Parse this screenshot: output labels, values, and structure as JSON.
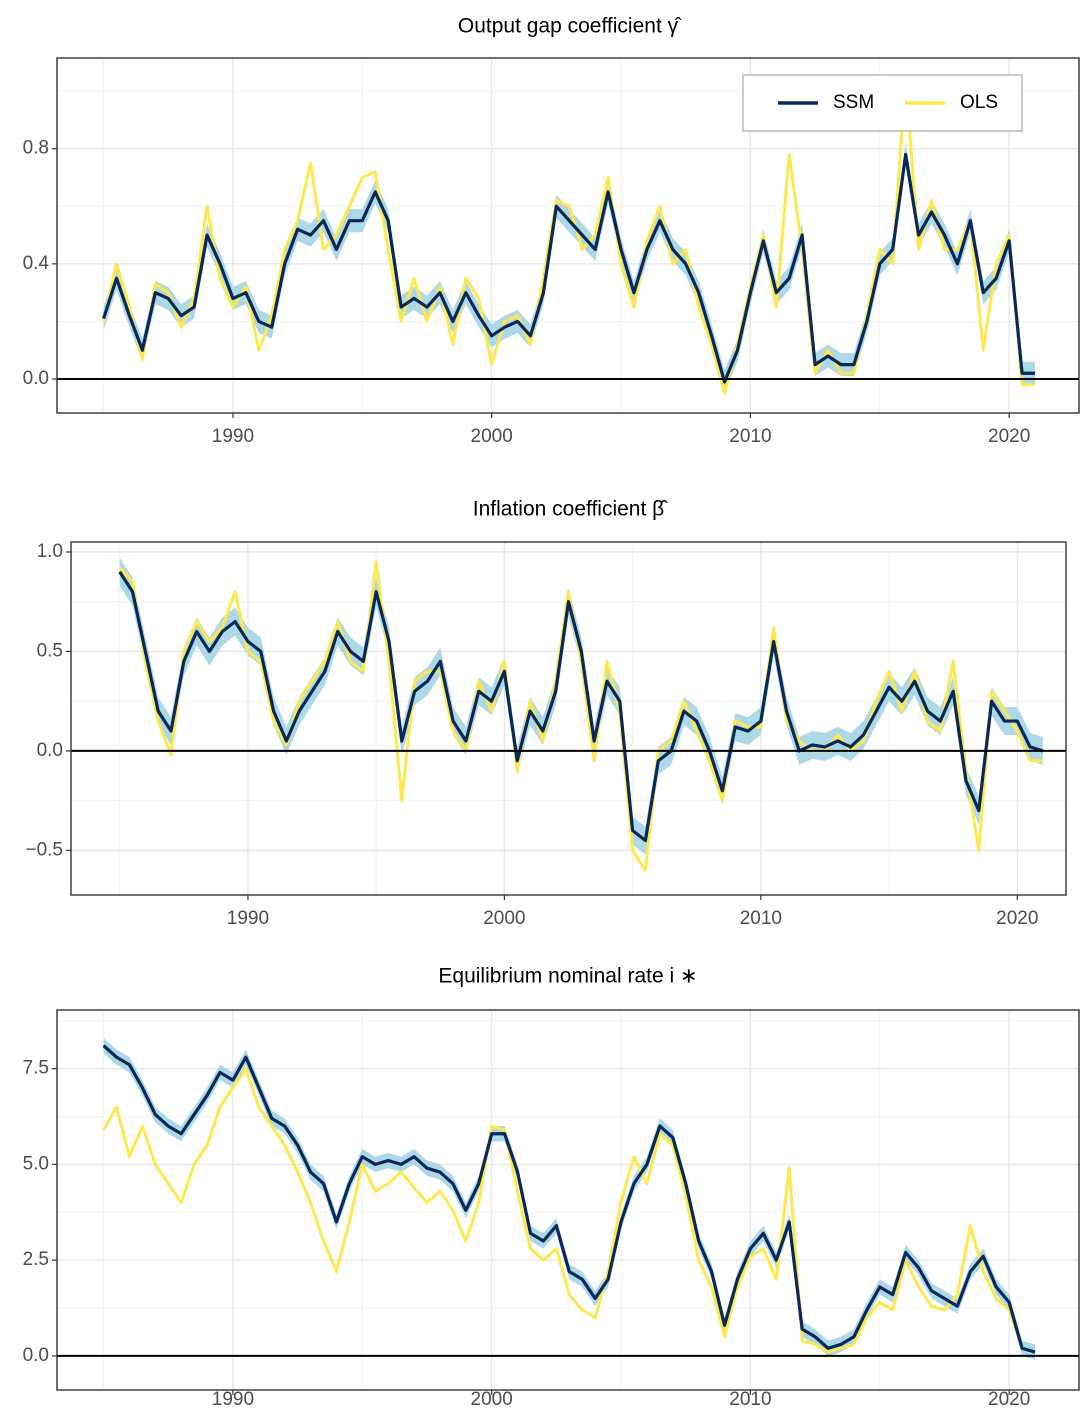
{
  "chart_data": [
    {
      "type": "line",
      "title": "Output gap coefficient γ̂",
      "x": [
        1985,
        1985.5,
        1986,
        1986.5,
        1987,
        1987.5,
        1988,
        1988.5,
        1989,
        1989.5,
        1990,
        1990.5,
        1991,
        1991.5,
        1992,
        1992.5,
        1993,
        1993.5,
        1994,
        1994.5,
        1995,
        1995.5,
        1996,
        1996.5,
        1997,
        1997.5,
        1998,
        1998.5,
        1999,
        1999.5,
        2000,
        2000.5,
        2001,
        2001.5,
        2002,
        2002.5,
        2003,
        2003.5,
        2004,
        2004.5,
        2005,
        2005.5,
        2006,
        2006.5,
        2007,
        2007.5,
        2008,
        2008.5,
        2009,
        2009.5,
        2010,
        2010.5,
        2011,
        2011.5,
        2012,
        2012.5,
        2013,
        2013.5,
        2014,
        2014.5,
        2015,
        2015.5,
        2016,
        2016.5,
        2017,
        2017.5,
        2018,
        2018.5,
        2019,
        2019.5,
        2020,
        2020.5,
        2021
      ],
      "xlim": [
        1983.2,
        2022.7
      ],
      "xticks": [
        1990,
        2000,
        2010,
        2020
      ],
      "ylim": [
        -0.118,
        1.115
      ],
      "yticks": [
        {
          "value": 0,
          "label": "0.0"
        },
        {
          "value": 0.4,
          "label": "0.4"
        },
        {
          "value": 0.8,
          "label": "0.8"
        }
      ],
      "hline": 0,
      "grid": true,
      "legend": "top-right",
      "series": [
        {
          "name": "SSM",
          "color": "#08285a",
          "band_color": "#add8e6",
          "error": 0.04,
          "values": [
            0.21,
            0.35,
            0.22,
            0.1,
            0.3,
            0.28,
            0.22,
            0.25,
            0.5,
            0.4,
            0.28,
            0.3,
            0.2,
            0.18,
            0.4,
            0.52,
            0.5,
            0.55,
            0.45,
            0.55,
            0.55,
            0.65,
            0.55,
            0.25,
            0.28,
            0.25,
            0.3,
            0.2,
            0.3,
            0.22,
            0.15,
            0.18,
            0.2,
            0.15,
            0.3,
            0.6,
            0.55,
            0.5,
            0.45,
            0.65,
            0.45,
            0.3,
            0.45,
            0.55,
            0.45,
            0.4,
            0.3,
            0.15,
            -0.01,
            0.1,
            0.3,
            0.48,
            0.3,
            0.35,
            0.5,
            0.05,
            0.08,
            0.05,
            0.05,
            0.2,
            0.4,
            0.45,
            0.78,
            0.5,
            0.58,
            0.5,
            0.4,
            0.55,
            0.3,
            0.35,
            0.48,
            0.02,
            0.02
          ]
        },
        {
          "name": "OLS",
          "color": "#ffe84d",
          "values": [
            0.2,
            0.4,
            0.25,
            0.07,
            0.33,
            0.3,
            0.18,
            0.28,
            0.6,
            0.35,
            0.25,
            0.32,
            0.1,
            0.22,
            0.45,
            0.55,
            0.75,
            0.45,
            0.5,
            0.6,
            0.7,
            0.72,
            0.45,
            0.2,
            0.35,
            0.2,
            0.32,
            0.12,
            0.35,
            0.28,
            0.05,
            0.2,
            0.22,
            0.12,
            0.35,
            0.62,
            0.6,
            0.45,
            0.5,
            0.7,
            0.4,
            0.25,
            0.48,
            0.6,
            0.4,
            0.45,
            0.25,
            0.12,
            -0.05,
            0.12,
            0.32,
            0.5,
            0.25,
            0.78,
            0.45,
            0.02,
            0.1,
            0.02,
            0.02,
            0.22,
            0.45,
            0.4,
            1.05,
            0.45,
            0.62,
            0.45,
            0.45,
            0.55,
            0.1,
            0.4,
            0.5,
            -0.02,
            -0.02
          ]
        }
      ]
    },
    {
      "type": "line",
      "title": "Inflation coefficient β̂",
      "x": [
        1985,
        1985.5,
        1986,
        1986.5,
        1987,
        1987.5,
        1988,
        1988.5,
        1989,
        1989.5,
        1990,
        1990.5,
        1991,
        1991.5,
        1992,
        1992.5,
        1993,
        1993.5,
        1994,
        1994.5,
        1995,
        1995.5,
        1996,
        1996.5,
        1997,
        1997.5,
        1998,
        1998.5,
        1999,
        1999.5,
        2000,
        2000.5,
        2001,
        2001.5,
        2002,
        2002.5,
        2003,
        2003.5,
        2004,
        2004.5,
        2005,
        2005.5,
        2006,
        2006.5,
        2007,
        2007.5,
        2008,
        2008.5,
        2009,
        2009.5,
        2010,
        2010.5,
        2011,
        2011.5,
        2012,
        2012.5,
        2013,
        2013.5,
        2014,
        2014.5,
        2015,
        2015.5,
        2016,
        2016.5,
        2017,
        2017.5,
        2018,
        2018.5,
        2019,
        2019.5,
        2020,
        2020.5,
        2021
      ],
      "xlim": [
        1983.1,
        2021.9
      ],
      "xticks": [
        1990,
        2000,
        2010,
        2020
      ],
      "ylim": [
        -0.724,
        1.05
      ],
      "yticks": [
        {
          "value": -0.5,
          "label": "−0.5"
        },
        {
          "value": 0,
          "label": "0.0"
        },
        {
          "value": 0.5,
          "label": "0.5"
        },
        {
          "value": 1,
          "label": "1.0"
        }
      ],
      "hline": 0,
      "grid": true,
      "series": [
        {
          "color": "#08285a",
          "band_color": "#add8e6",
          "error": 0.07,
          "values": [
            0.9,
            0.8,
            0.5,
            0.2,
            0.1,
            0.45,
            0.6,
            0.5,
            0.6,
            0.65,
            0.55,
            0.5,
            0.2,
            0.05,
            0.2,
            0.3,
            0.4,
            0.6,
            0.5,
            0.45,
            0.8,
            0.55,
            0.05,
            0.3,
            0.35,
            0.45,
            0.15,
            0.05,
            0.3,
            0.25,
            0.4,
            -0.05,
            0.2,
            0.1,
            0.3,
            0.75,
            0.5,
            0.05,
            0.35,
            0.25,
            -0.4,
            -0.45,
            -0.05,
            0.0,
            0.2,
            0.15,
            0.0,
            -0.2,
            0.12,
            0.1,
            0.15,
            0.55,
            0.2,
            0.0,
            0.03,
            0.02,
            0.05,
            0.02,
            0.08,
            0.2,
            0.32,
            0.25,
            0.35,
            0.2,
            0.15,
            0.3,
            -0.15,
            -0.3,
            0.25,
            0.15,
            0.15,
            0.02,
            0.0
          ]
        },
        {
          "color": "#ffe84d",
          "values": [
            0.92,
            0.85,
            0.45,
            0.15,
            -0.02,
            0.5,
            0.65,
            0.55,
            0.62,
            0.8,
            0.5,
            0.45,
            0.15,
            0.03,
            0.25,
            0.35,
            0.45,
            0.65,
            0.45,
            0.4,
            0.95,
            0.45,
            -0.25,
            0.35,
            0.4,
            0.4,
            0.1,
            0.0,
            0.35,
            0.2,
            0.45,
            -0.1,
            0.25,
            0.05,
            0.35,
            0.8,
            0.45,
            -0.05,
            0.45,
            0.2,
            -0.5,
            -0.6,
            0.0,
            0.05,
            0.25,
            0.1,
            -0.05,
            -0.25,
            0.15,
            0.12,
            0.12,
            0.62,
            0.15,
            0.05,
            0.0,
            0.0,
            0.08,
            0.0,
            0.05,
            0.25,
            0.4,
            0.2,
            0.4,
            0.15,
            0.1,
            0.45,
            -0.1,
            -0.5,
            0.3,
            0.2,
            0.1,
            -0.05,
            -0.05
          ]
        }
      ]
    },
    {
      "type": "line",
      "title": "Equilibrium nominal rate i ∗",
      "x": [
        1985,
        1985.5,
        1986,
        1986.5,
        1987,
        1987.5,
        1988,
        1988.5,
        1989,
        1989.5,
        1990,
        1990.5,
        1991,
        1991.5,
        1992,
        1992.5,
        1993,
        1993.5,
        1994,
        1994.5,
        1995,
        1995.5,
        1996,
        1996.5,
        1997,
        1997.5,
        1998,
        1998.5,
        1999,
        1999.5,
        2000,
        2000.5,
        2001,
        2001.5,
        2002,
        2002.5,
        2003,
        2003.5,
        2004,
        2004.5,
        2005,
        2005.5,
        2006,
        2006.5,
        2007,
        2007.5,
        2008,
        2008.5,
        2009,
        2009.5,
        2010,
        2010.5,
        2011,
        2011.5,
        2012,
        2012.5,
        2013,
        2013.5,
        2014,
        2014.5,
        2015,
        2015.5,
        2016,
        2016.5,
        2017,
        2017.5,
        2018,
        2018.5,
        2019,
        2019.5,
        2020,
        2020.5,
        2021
      ],
      "xlim": [
        1983.2,
        2022.7
      ],
      "xticks": [
        1990,
        2000,
        2010,
        2020
      ],
      "ylim": [
        -0.89,
        9.03
      ],
      "yticks": [
        {
          "value": 0,
          "label": "0.0"
        },
        2.5,
        {
          "value": 5,
          "label": "5.0"
        },
        7.5
      ],
      "hline": 0,
      "grid": true,
      "series": [
        {
          "color": "#08285a",
          "band_color": "#add8e6",
          "error": 0.2,
          "values": [
            8.1,
            7.8,
            7.6,
            7.0,
            6.3,
            6.0,
            5.8,
            6.3,
            6.8,
            7.4,
            7.2,
            7.8,
            7.0,
            6.2,
            6.0,
            5.5,
            4.8,
            4.5,
            3.5,
            4.5,
            5.2,
            5.0,
            5.1,
            5.0,
            5.2,
            4.9,
            4.8,
            4.5,
            3.8,
            4.5,
            5.8,
            5.8,
            4.8,
            3.2,
            3.0,
            3.4,
            2.2,
            2.0,
            1.5,
            2.0,
            3.5,
            4.5,
            5.0,
            6.0,
            5.7,
            4.5,
            3.0,
            2.2,
            0.8,
            2.0,
            2.8,
            3.2,
            2.5,
            3.5,
            0.7,
            0.5,
            0.2,
            0.3,
            0.5,
            1.2,
            1.8,
            1.6,
            2.7,
            2.3,
            1.7,
            1.5,
            1.3,
            2.2,
            2.6,
            1.8,
            1.4,
            0.2,
            0.1
          ]
        },
        {
          "color": "#ffe84d",
          "values": [
            5.9,
            6.5,
            5.2,
            6.0,
            5.0,
            4.5,
            4.0,
            5.0,
            5.5,
            6.5,
            7.0,
            7.5,
            6.5,
            6.0,
            5.5,
            4.8,
            4.0,
            3.0,
            2.2,
            3.5,
            5.0,
            4.3,
            4.5,
            4.8,
            4.4,
            4.0,
            4.3,
            3.8,
            3.0,
            4.0,
            6.0,
            5.9,
            4.3,
            2.8,
            2.5,
            2.8,
            1.6,
            1.2,
            1.0,
            2.2,
            4.0,
            5.2,
            4.5,
            5.8,
            5.5,
            4.2,
            2.5,
            1.8,
            0.5,
            1.8,
            2.6,
            2.8,
            2.0,
            4.9,
            0.4,
            0.3,
            0.1,
            0.2,
            0.3,
            1.0,
            1.4,
            1.2,
            2.5,
            1.8,
            1.3,
            1.2,
            1.6,
            3.4,
            2.2,
            1.5,
            1.2,
            0.2,
            0.1
          ]
        }
      ]
    }
  ]
}
